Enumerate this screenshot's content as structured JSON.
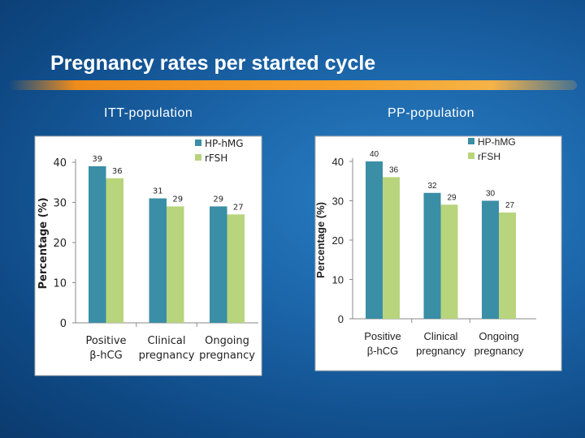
{
  "slide": {
    "title": "Pregnancy rates per started cycle"
  },
  "chart_data": [
    {
      "type": "bar",
      "subtitle": "ITT-population",
      "ylabel": "Percentage (%)",
      "ylim": [
        0,
        40
      ],
      "yticks": [
        0,
        10,
        20,
        30,
        40
      ],
      "categories": [
        "Positive\nβ-hCG",
        "Clinical\npregnancy",
        "Ongoing\npregnancy"
      ],
      "series": [
        {
          "name": "HP-hMG",
          "color": "#3a8ea6",
          "values": [
            39,
            31,
            29
          ]
        },
        {
          "name": "rFSH",
          "color": "#b8d47c",
          "values": [
            36,
            29,
            27
          ]
        }
      ],
      "legend": "top-right",
      "grid": false
    },
    {
      "type": "bar",
      "subtitle": "PP-population",
      "ylabel": "Percentage (%)",
      "ylim": [
        0,
        40
      ],
      "yticks": [
        0,
        10,
        20,
        30,
        40
      ],
      "categories": [
        "Positive\nβ-hCG",
        "Clinical\npregnancy",
        "Ongoing\npregnancy"
      ],
      "series": [
        {
          "name": "HP-hMG",
          "color": "#3a8ea6",
          "values": [
            40,
            32,
            30
          ]
        },
        {
          "name": "rFSH",
          "color": "#b8d47c",
          "values": [
            36,
            29,
            27
          ]
        }
      ],
      "legend": "top-right",
      "grid": false
    }
  ]
}
